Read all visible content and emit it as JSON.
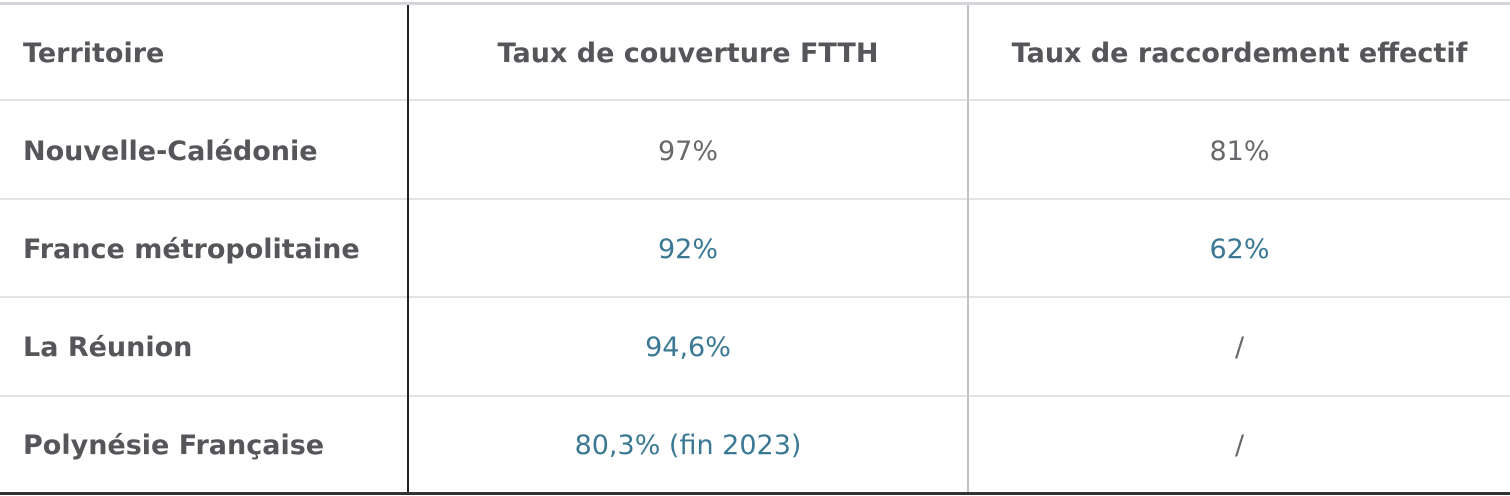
{
  "table": {
    "header": [
      "Territoire",
      "Taux de couverture FTTH",
      "Taux de raccordement effectif"
    ],
    "rows": [
      [
        "Nouvelle-Calédonie",
        "97%",
        "81%"
      ],
      [
        "France métropolitaine",
        "92%",
        "62%"
      ],
      [
        "La Réunion",
        "94,6%",
        "/"
      ],
      [
        "Polynésie Française",
        "80,3% (fin 2023)",
        "/"
      ]
    ]
  }
}
